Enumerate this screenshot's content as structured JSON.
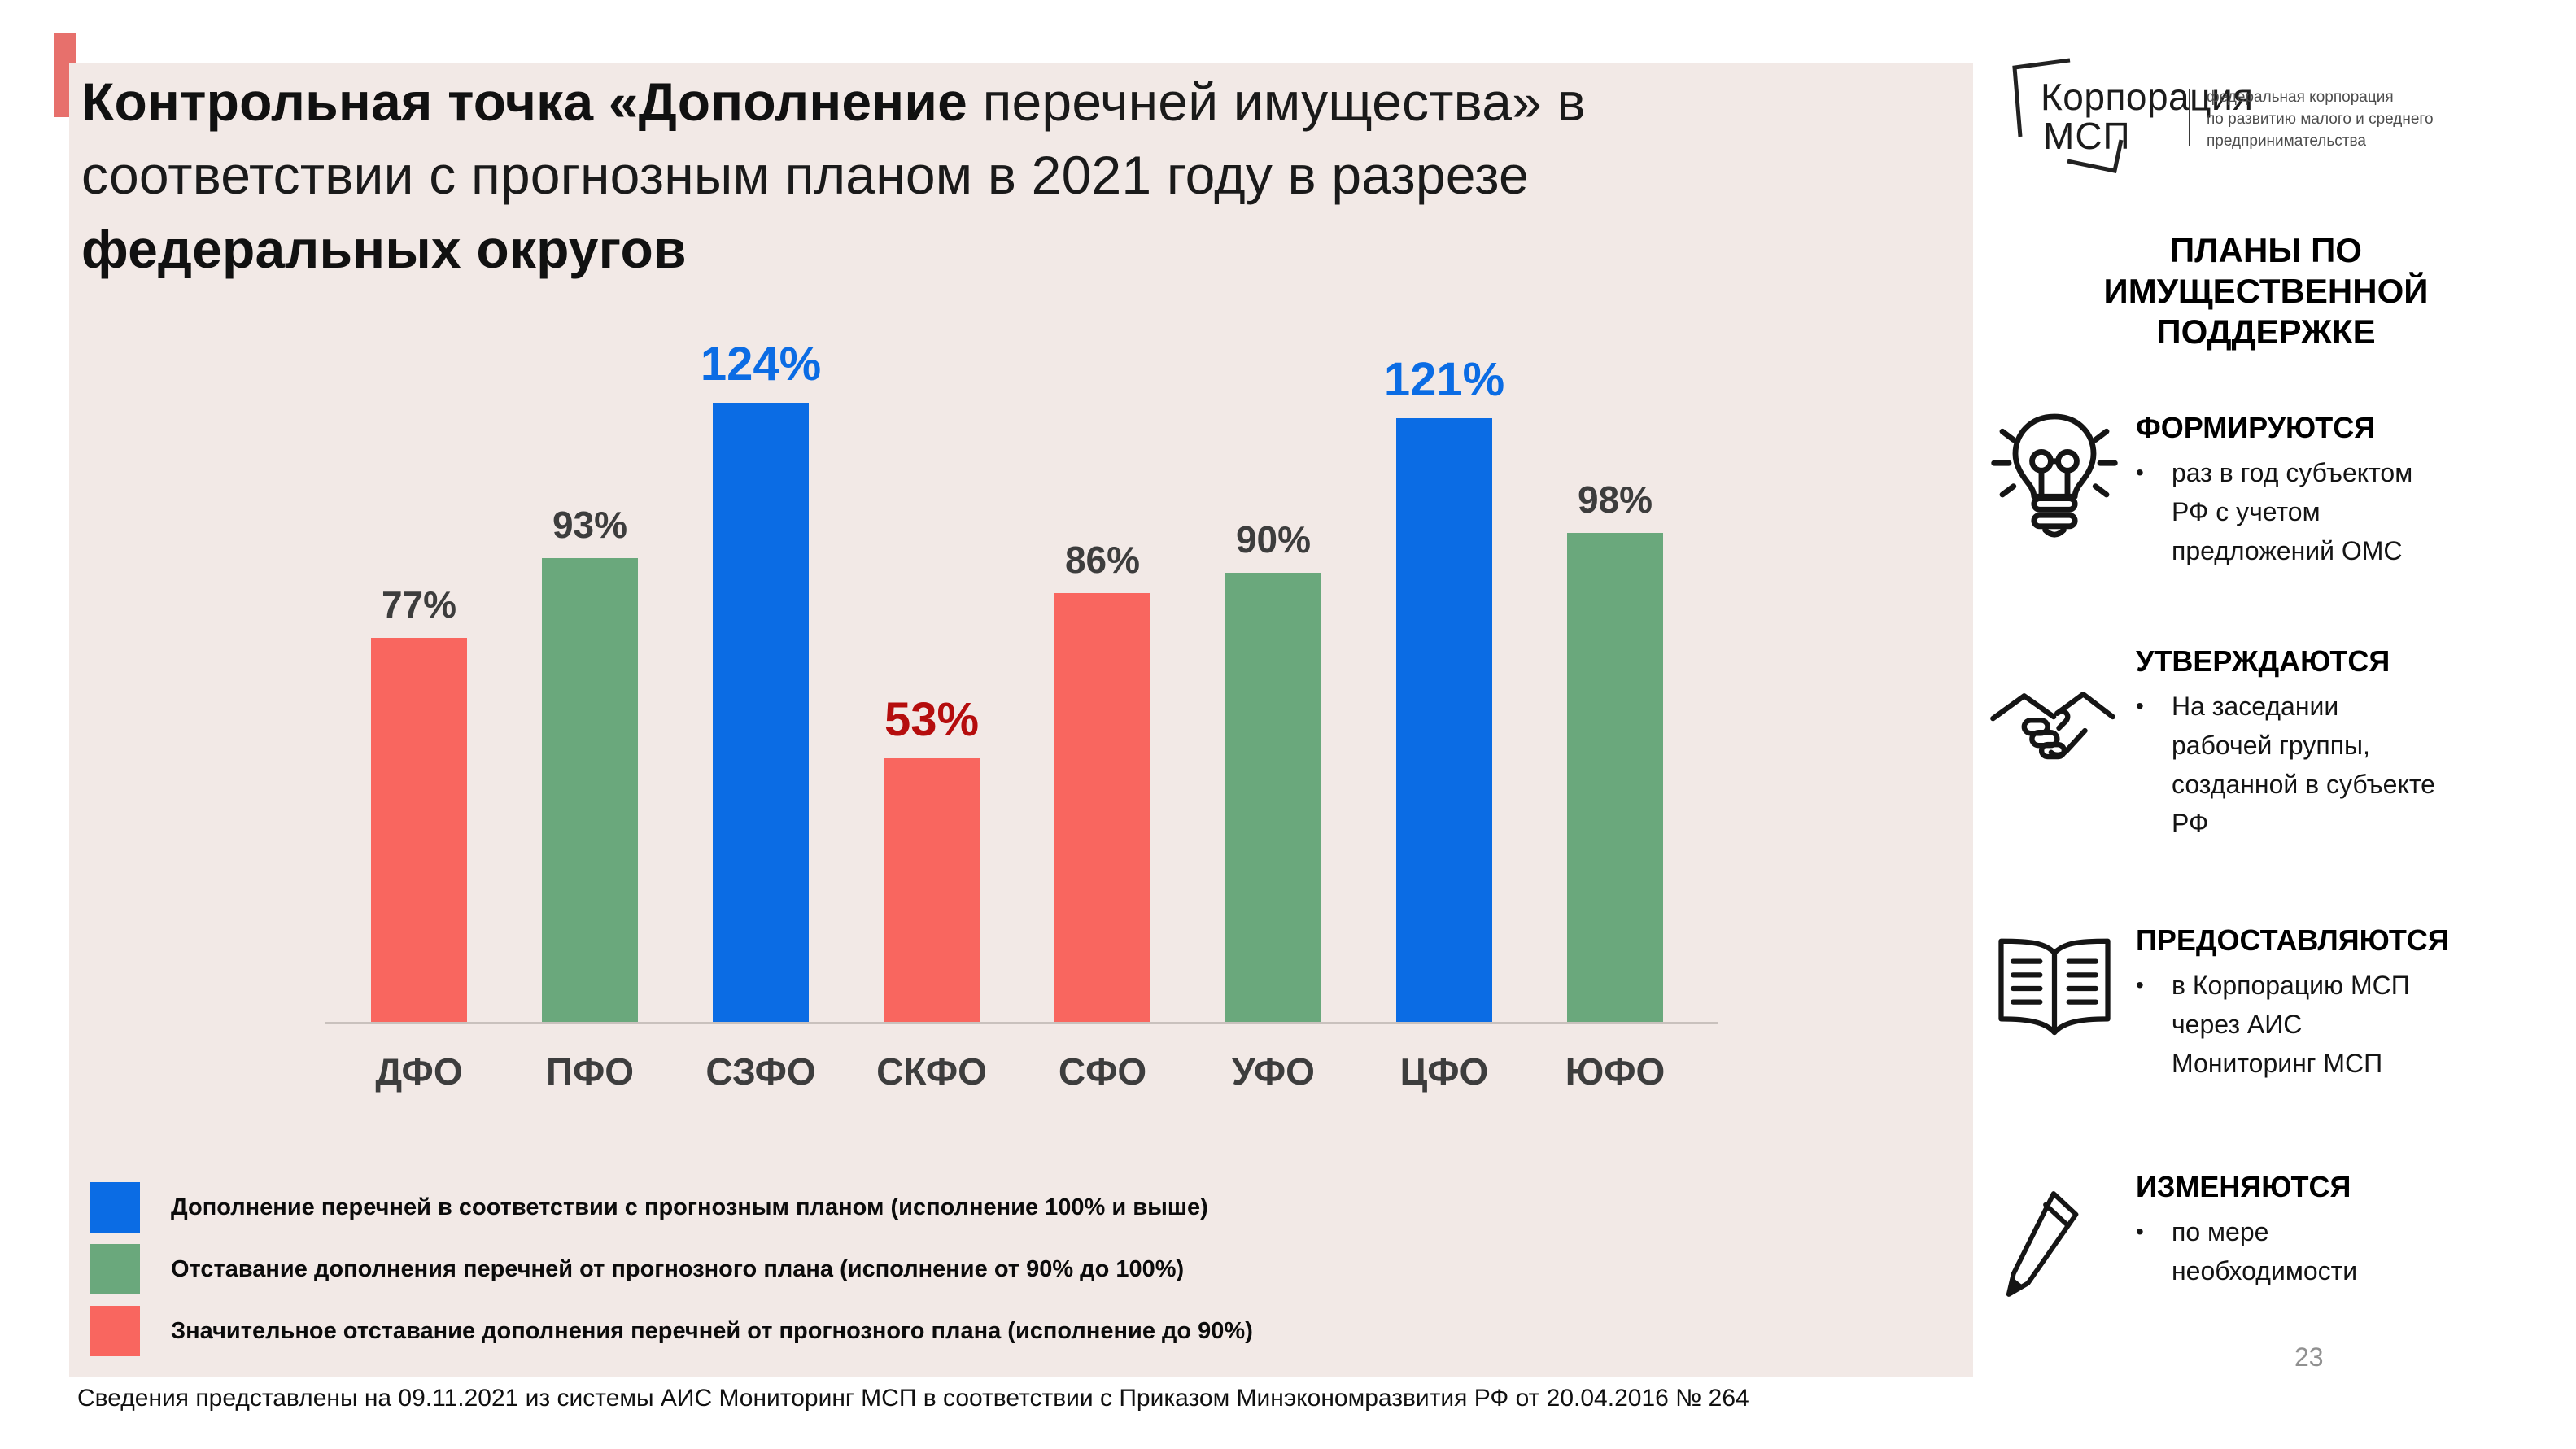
{
  "colors": {
    "blue": "#0b6ce4",
    "green": "#6aa87c",
    "red": "#f9665f",
    "dark_red": "#b50d0d",
    "gray_label": "#3d3d3d",
    "panel_beige": "#f2e9e6",
    "accent_red": "#e4615c",
    "axis_line": "#c9c1bd",
    "page_number_gray": "#909090"
  },
  "title": {
    "bold_1": "Контрольная точка «Дополнение",
    "regular_1": " перечней имущества» в соответствии с прогнозным планом в 2021 году в разрезе ",
    "bold_2": "федеральных округов"
  },
  "chart_data": {
    "type": "bar",
    "categories": [
      "ДФО",
      "ПФО",
      "СЗФО",
      "СКФО",
      "СФО",
      "УФО",
      "ЦФО",
      "ЮФО"
    ],
    "values": [
      77,
      93,
      124,
      53,
      86,
      90,
      121,
      98
    ],
    "unit": "%",
    "value_labels": [
      "77%",
      "93%",
      "124%",
      "53%",
      "86%",
      "90%",
      "121%",
      "98%"
    ],
    "bar_color_keys": [
      "red",
      "green",
      "blue",
      "red",
      "red",
      "green",
      "blue",
      "green"
    ],
    "label_color_keys": [
      "gray_label",
      "gray_label",
      "blue",
      "dark_red",
      "gray_label",
      "gray_label",
      "blue",
      "gray_label"
    ],
    "emphasized": [
      false,
      false,
      true,
      true,
      false,
      false,
      true,
      false
    ],
    "ylim": [
      0,
      130
    ],
    "grid": false,
    "xlabel": "",
    "ylabel": "",
    "legend_position": "bottom-left",
    "title": "Контрольная точка «Дополнение перечней имущества» в соответствии с прогнозным планом в 2021 году в разрезе федеральных округов"
  },
  "legend": {
    "items": [
      {
        "color_key": "blue",
        "label": "Дополнение перечней в соответствии с прогнозным планом (исполнение 100% и выше)"
      },
      {
        "color_key": "green",
        "label": "Отставание дополнения перечней от прогнозного плана (исполнение от 90% до 100%)"
      },
      {
        "color_key": "red",
        "label": "Значительное отставание дополнения перечней от прогнозного плана (исполнение до 90%)"
      }
    ]
  },
  "footer": "Сведения представлены на 09.11.2021 из системы АИС Мониторинг МСП в соответствии с Приказом Минэкономразвития РФ от 20.04.2016 № 264",
  "logo": {
    "brand_line1": "Корпорация",
    "brand_line2": "МСП",
    "tagline_lines": [
      "федеральная корпорация",
      "по развитию малого и среднего",
      "предпринимательства"
    ]
  },
  "sidebar": {
    "heading": "ПЛАНЫ ПО ИМУЩЕСТВЕННОЙ ПОДДЕРЖКЕ",
    "sections": [
      {
        "icon": "lightbulb-icon",
        "heading": "ФОРМИРУЮТСЯ",
        "bullet": "раз в год субъектом РФ с учетом предложений ОМС"
      },
      {
        "icon": "handshake-icon",
        "heading": "УТВЕРЖДАЮТСЯ",
        "bullet": "На заседании рабочей группы, созданной в субъекте РФ"
      },
      {
        "icon": "open-book-icon",
        "heading": "ПРЕДОСТАВЛЯЮТСЯ",
        "bullet": "в Корпорацию МСП через АИС Мониторинг МСП"
      },
      {
        "icon": "pencil-icon",
        "heading": "ИЗМЕНЯЮТСЯ",
        "bullet": "по мере необходимости"
      }
    ]
  },
  "page_number": "23"
}
